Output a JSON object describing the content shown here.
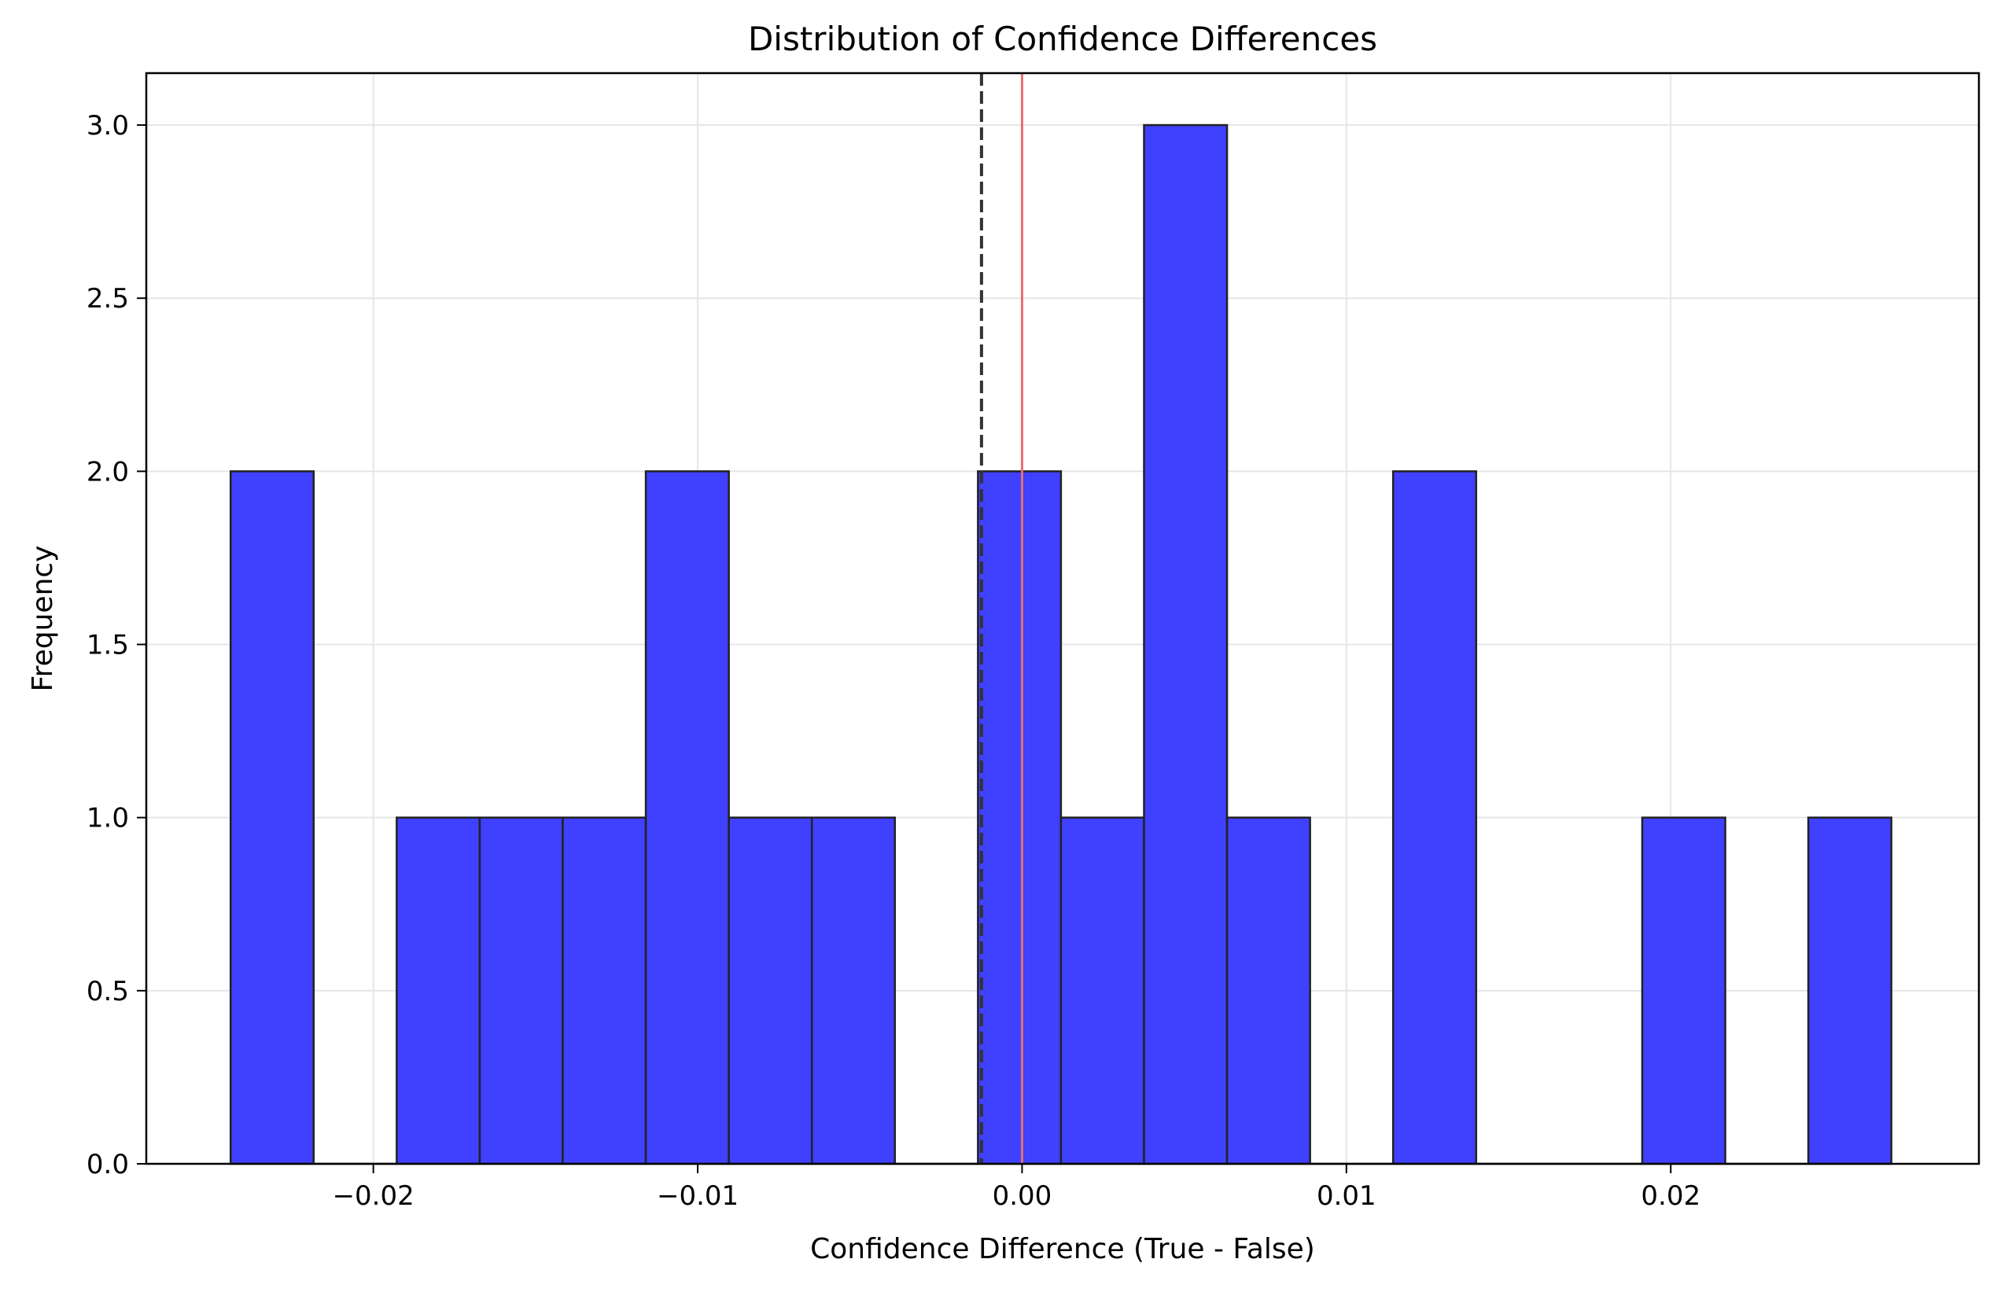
{
  "chart_data": {
    "type": "bar",
    "title": "Distribution of Confidence Differences",
    "xlabel": "Confidence Difference (True - False)",
    "ylabel": "Frequency",
    "xlim": [
      -0.027,
      0.0295
    ],
    "ylim": [
      0,
      3.15
    ],
    "grid": true,
    "x_ticks": [
      -0.02,
      -0.01,
      0.0,
      0.01,
      0.02
    ],
    "x_tick_labels": [
      "−0.02",
      "−0.01",
      "0.00",
      "0.01",
      "0.02"
    ],
    "y_ticks": [
      0.0,
      0.5,
      1.0,
      1.5,
      2.0,
      2.5,
      3.0
    ],
    "y_tick_labels": [
      "0.0",
      "0.5",
      "1.0",
      "1.5",
      "2.0",
      "2.5",
      "3.0"
    ],
    "bin_edges": [
      -0.0244,
      -0.02184,
      -0.01928,
      -0.01672,
      -0.01416,
      -0.0116,
      -0.00904,
      -0.00648,
      -0.00392,
      -0.00136,
      0.0012,
      0.00376,
      0.00632,
      0.00888,
      0.01144,
      0.014,
      0.01656,
      0.01912,
      0.02168,
      0.02424,
      0.0268
    ],
    "counts": [
      2,
      0,
      1,
      1,
      1,
      2,
      1,
      1,
      0,
      2,
      1,
      3,
      1,
      0,
      2,
      0,
      0,
      1,
      0,
      1
    ],
    "bar_color": "#4040ff",
    "edge_color": "#222222",
    "reference_lines": [
      {
        "x": -0.00125,
        "color": "#333333",
        "style": "dashed"
      },
      {
        "x": 0.0,
        "color": "#e87070",
        "style": "solid"
      }
    ]
  }
}
